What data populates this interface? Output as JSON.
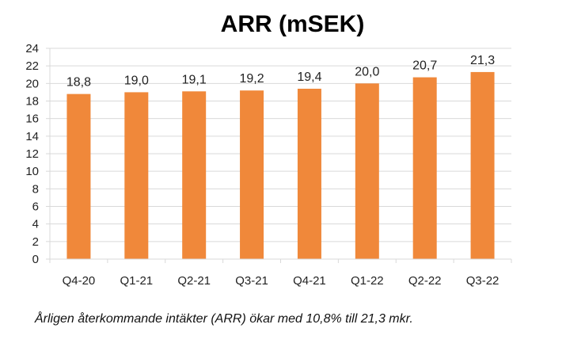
{
  "chart_data": {
    "type": "bar",
    "title": "ARR (mSEK)",
    "categories": [
      "Q4-20",
      "Q1-21",
      "Q2-21",
      "Q3-21",
      "Q4-21",
      "Q1-22",
      "Q2-22",
      "Q3-22"
    ],
    "values": [
      18.8,
      19.0,
      19.1,
      19.2,
      19.4,
      20.0,
      20.7,
      21.3
    ],
    "data_labels": [
      "18,8",
      "19,0",
      "19,1",
      "19,2",
      "19,4",
      "20,0",
      "20,7",
      "21,3"
    ],
    "ylim": [
      0,
      24
    ],
    "yticks": [
      "0",
      "2",
      "4",
      "6",
      "8",
      "10",
      "12",
      "14",
      "16",
      "18",
      "20",
      "22",
      "24"
    ],
    "grid": true,
    "legend": "none",
    "bar_color": "#F0883A",
    "grid_color": "#D9D9D9"
  },
  "caption": "Årligen återkommande intäkter (ARR) ökar med 10,8% till 21,3 mkr."
}
